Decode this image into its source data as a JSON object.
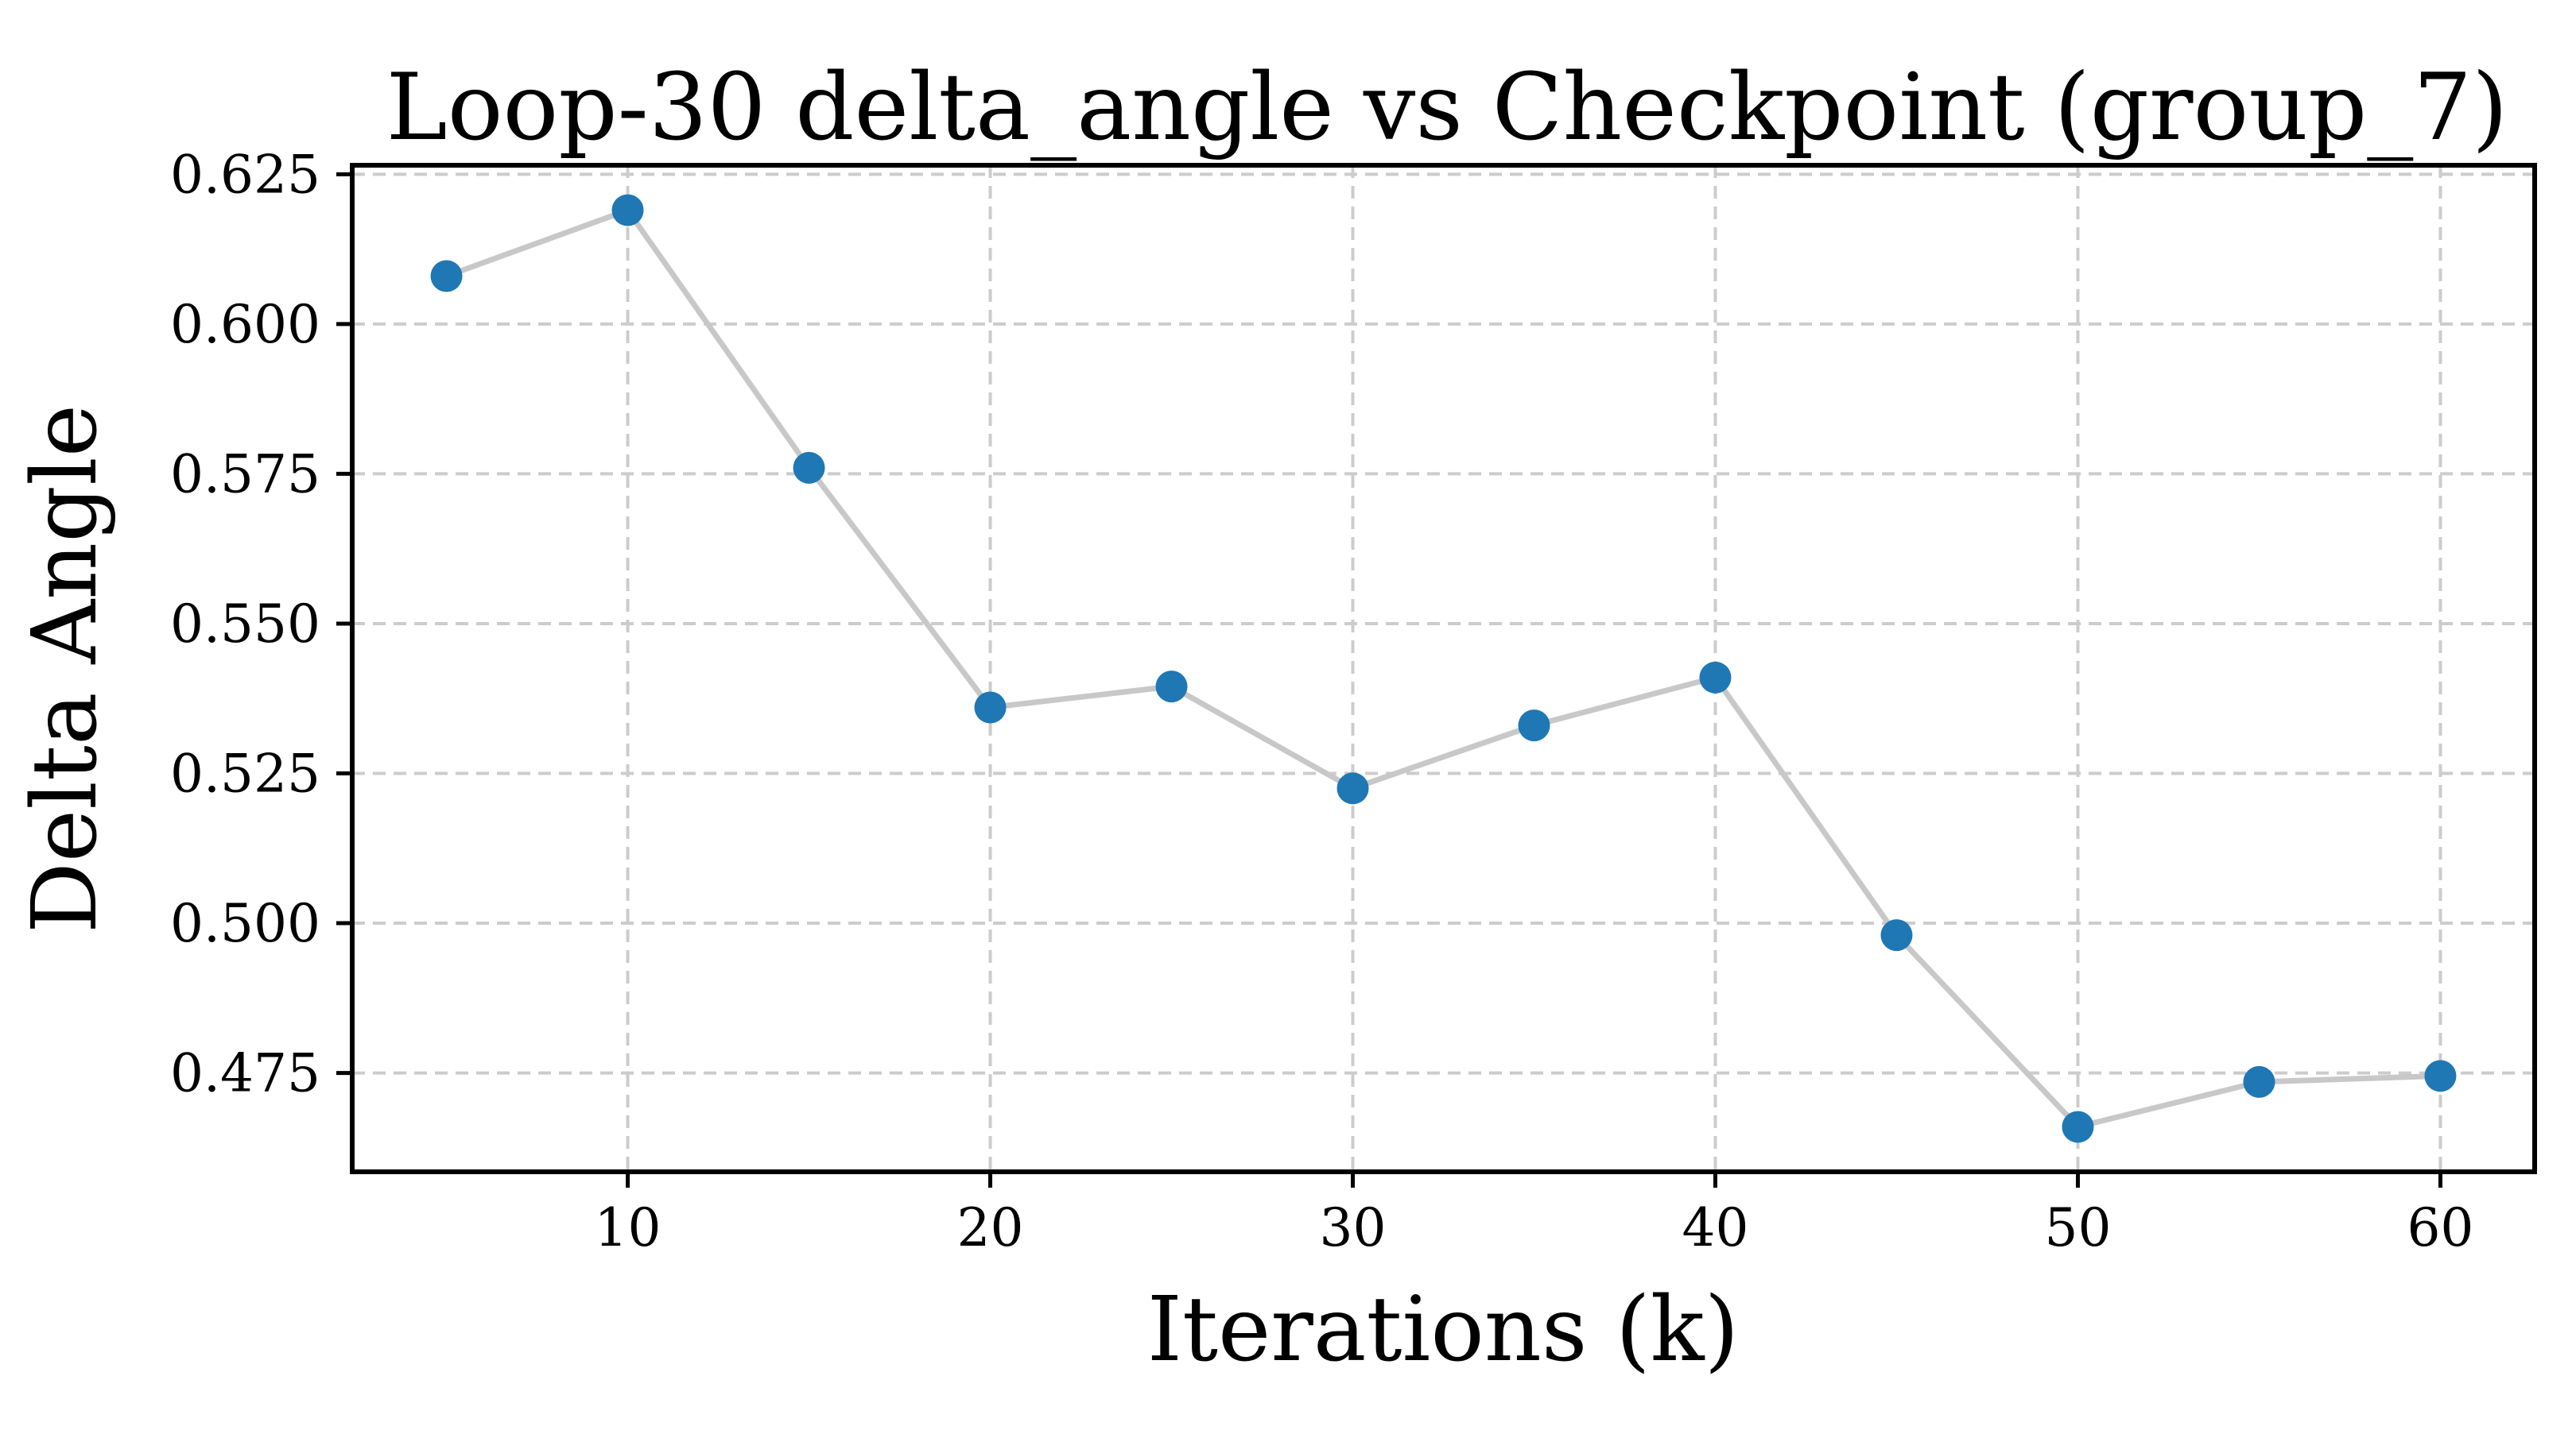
{
  "chart_data": {
    "type": "line",
    "title": "Loop-30 delta_angle vs Checkpoint (group_7)",
    "xlabel": "Iterations (k)",
    "ylabel": "Delta Angle",
    "xlim": [
      2.4,
      62.6
    ],
    "ylim": [
      0.4585,
      0.6265
    ],
    "xticks": [
      10,
      20,
      30,
      40,
      50,
      60
    ],
    "xtick_labels": [
      "10",
      "20",
      "30",
      "40",
      "50",
      "60"
    ],
    "yticks": [
      0.475,
      0.5,
      0.525,
      0.55,
      0.575,
      0.6,
      0.625
    ],
    "ytick_labels": [
      "0.475",
      "0.500",
      "0.525",
      "0.550",
      "0.575",
      "0.600",
      "0.625"
    ],
    "grid": true,
    "legend": "none",
    "colors": {
      "marker": "#1f77b4",
      "line": "#c8c8c8",
      "grid": "#cccccc"
    },
    "x": [
      5,
      10,
      15,
      20,
      25,
      30,
      35,
      40,
      45,
      50,
      55,
      60
    ],
    "values": [
      0.608,
      0.619,
      0.576,
      0.536,
      0.5395,
      0.5225,
      0.533,
      0.541,
      0.498,
      0.466,
      0.4735,
      0.4745
    ]
  }
}
